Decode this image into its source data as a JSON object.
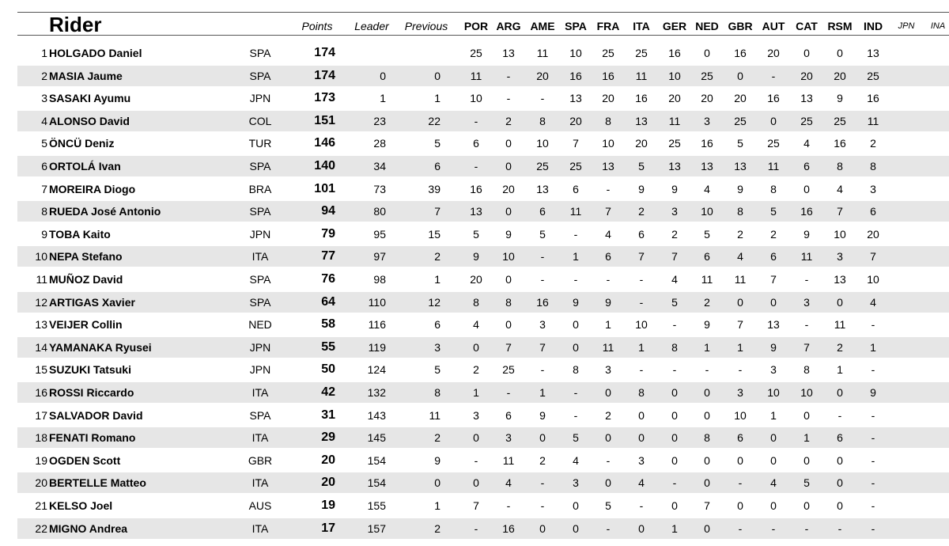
{
  "header": {
    "rider": "Rider",
    "points": "Points",
    "leader": "Leader",
    "previous": "Previous",
    "races": [
      "POR",
      "ARG",
      "AME",
      "SPA",
      "FRA",
      "ITA",
      "GER",
      "NED",
      "GBR",
      "AUT",
      "CAT",
      "RSM",
      "IND"
    ],
    "future": [
      "JPN",
      "INA"
    ]
  },
  "rows": [
    {
      "pos": "1",
      "name": "HOLGADO Daniel",
      "nat": "SPA",
      "points": "174",
      "leader": "",
      "previous": "",
      "r": [
        "25",
        "13",
        "11",
        "10",
        "25",
        "25",
        "16",
        "0",
        "16",
        "20",
        "0",
        "0",
        "13"
      ]
    },
    {
      "pos": "2",
      "name": "MASIA Jaume",
      "nat": "SPA",
      "points": "174",
      "leader": "0",
      "previous": "0",
      "r": [
        "11",
        "-",
        "20",
        "16",
        "16",
        "11",
        "10",
        "25",
        "0",
        "-",
        "20",
        "20",
        "25"
      ]
    },
    {
      "pos": "3",
      "name": "SASAKI Ayumu",
      "nat": "JPN",
      "points": "173",
      "leader": "1",
      "previous": "1",
      "r": [
        "10",
        "-",
        "-",
        "13",
        "20",
        "16",
        "20",
        "20",
        "20",
        "16",
        "13",
        "9",
        "16"
      ]
    },
    {
      "pos": "4",
      "name": "ALONSO David",
      "nat": "COL",
      "points": "151",
      "leader": "23",
      "previous": "22",
      "r": [
        "-",
        "2",
        "8",
        "20",
        "8",
        "13",
        "11",
        "3",
        "25",
        "0",
        "25",
        "25",
        "11"
      ]
    },
    {
      "pos": "5",
      "name": "ÖNCÜ Deniz",
      "nat": "TUR",
      "points": "146",
      "leader": "28",
      "previous": "5",
      "r": [
        "6",
        "0",
        "10",
        "7",
        "10",
        "20",
        "25",
        "16",
        "5",
        "25",
        "4",
        "16",
        "2"
      ]
    },
    {
      "pos": "6",
      "name": "ORTOLÁ Ivan",
      "nat": "SPA",
      "points": "140",
      "leader": "34",
      "previous": "6",
      "r": [
        "-",
        "0",
        "25",
        "25",
        "13",
        "5",
        "13",
        "13",
        "13",
        "11",
        "6",
        "8",
        "8"
      ]
    },
    {
      "pos": "7",
      "name": "MOREIRA Diogo",
      "nat": "BRA",
      "points": "101",
      "leader": "73",
      "previous": "39",
      "r": [
        "16",
        "20",
        "13",
        "6",
        "-",
        "9",
        "9",
        "4",
        "9",
        "8",
        "0",
        "4",
        "3"
      ]
    },
    {
      "pos": "8",
      "name": "RUEDA José Antonio",
      "nat": "SPA",
      "points": "94",
      "leader": "80",
      "previous": "7",
      "r": [
        "13",
        "0",
        "6",
        "11",
        "7",
        "2",
        "3",
        "10",
        "8",
        "5",
        "16",
        "7",
        "6"
      ]
    },
    {
      "pos": "9",
      "name": "TOBA Kaito",
      "nat": "JPN",
      "points": "79",
      "leader": "95",
      "previous": "15",
      "r": [
        "5",
        "9",
        "5",
        "-",
        "4",
        "6",
        "2",
        "5",
        "2",
        "2",
        "9",
        "10",
        "20"
      ]
    },
    {
      "pos": "10",
      "name": "NEPA Stefano",
      "nat": "ITA",
      "points": "77",
      "leader": "97",
      "previous": "2",
      "r": [
        "9",
        "10",
        "-",
        "1",
        "6",
        "7",
        "7",
        "6",
        "4",
        "6",
        "11",
        "3",
        "7"
      ]
    },
    {
      "pos": "11",
      "name": "MUÑOZ David",
      "nat": "SPA",
      "points": "76",
      "leader": "98",
      "previous": "1",
      "r": [
        "20",
        "0",
        "-",
        "-",
        "-",
        "-",
        "4",
        "11",
        "11",
        "7",
        "-",
        "13",
        "10"
      ]
    },
    {
      "pos": "12",
      "name": "ARTIGAS Xavier",
      "nat": "SPA",
      "points": "64",
      "leader": "110",
      "previous": "12",
      "r": [
        "8",
        "8",
        "16",
        "9",
        "9",
        "-",
        "5",
        "2",
        "0",
        "0",
        "3",
        "0",
        "4"
      ]
    },
    {
      "pos": "13",
      "name": "VEIJER Collin",
      "nat": "NED",
      "points": "58",
      "leader": "116",
      "previous": "6",
      "r": [
        "4",
        "0",
        "3",
        "0",
        "1",
        "10",
        "-",
        "9",
        "7",
        "13",
        "-",
        "11",
        "-"
      ]
    },
    {
      "pos": "14",
      "name": "YAMANAKA Ryusei",
      "nat": "JPN",
      "points": "55",
      "leader": "119",
      "previous": "3",
      "r": [
        "0",
        "7",
        "7",
        "0",
        "11",
        "1",
        "8",
        "1",
        "1",
        "9",
        "7",
        "2",
        "1"
      ]
    },
    {
      "pos": "15",
      "name": "SUZUKI Tatsuki",
      "nat": "JPN",
      "points": "50",
      "leader": "124",
      "previous": "5",
      "r": [
        "2",
        "25",
        "-",
        "8",
        "3",
        "-",
        "-",
        "-",
        "-",
        "3",
        "8",
        "1",
        "-"
      ]
    },
    {
      "pos": "16",
      "name": "ROSSI Riccardo",
      "nat": "ITA",
      "points": "42",
      "leader": "132",
      "previous": "8",
      "r": [
        "1",
        "-",
        "1",
        "-",
        "0",
        "8",
        "0",
        "0",
        "3",
        "10",
        "10",
        "0",
        "9"
      ]
    },
    {
      "pos": "17",
      "name": "SALVADOR David",
      "nat": "SPA",
      "points": "31",
      "leader": "143",
      "previous": "11",
      "r": [
        "3",
        "6",
        "9",
        "-",
        "2",
        "0",
        "0",
        "0",
        "10",
        "1",
        "0",
        "-",
        "-"
      ]
    },
    {
      "pos": "18",
      "name": "FENATI Romano",
      "nat": "ITA",
      "points": "29",
      "leader": "145",
      "previous": "2",
      "r": [
        "0",
        "3",
        "0",
        "5",
        "0",
        "0",
        "0",
        "8",
        "6",
        "0",
        "1",
        "6",
        "-"
      ]
    },
    {
      "pos": "19",
      "name": "OGDEN Scott",
      "nat": "GBR",
      "points": "20",
      "leader": "154",
      "previous": "9",
      "r": [
        "-",
        "11",
        "2",
        "4",
        "-",
        "3",
        "0",
        "0",
        "0",
        "0",
        "0",
        "0",
        "-"
      ]
    },
    {
      "pos": "20",
      "name": "BERTELLE Matteo",
      "nat": "ITA",
      "points": "20",
      "leader": "154",
      "previous": "0",
      "r": [
        "0",
        "4",
        "-",
        "3",
        "0",
        "4",
        "-",
        "0",
        "-",
        "4",
        "5",
        "0",
        "-"
      ]
    },
    {
      "pos": "21",
      "name": "KELSO Joel",
      "nat": "AUS",
      "points": "19",
      "leader": "155",
      "previous": "1",
      "r": [
        "7",
        "-",
        "-",
        "0",
        "5",
        "-",
        "0",
        "7",
        "0",
        "0",
        "0",
        "0",
        "-"
      ]
    },
    {
      "pos": "22",
      "name": "MIGNO Andrea",
      "nat": "ITA",
      "points": "17",
      "leader": "157",
      "previous": "2",
      "r": [
        "-",
        "16",
        "0",
        "0",
        "-",
        "0",
        "1",
        "0",
        "-",
        "-",
        "-",
        "-",
        "-"
      ]
    }
  ]
}
